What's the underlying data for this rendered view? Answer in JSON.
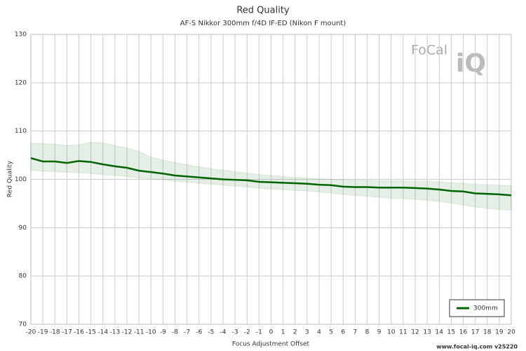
{
  "chart_data": {
    "type": "line",
    "title": "Red Quality",
    "subtitle": "AF-S Nikkor 300mm f/4D IF-ED (Nikon F mount)",
    "x_label": "Focus Adjustment Offset",
    "y_label": "Red Quality",
    "x": [
      -20,
      -19,
      -18,
      -17,
      -16,
      -15,
      -14,
      -13,
      -12,
      -11,
      -10,
      -9,
      -8,
      -7,
      -6,
      -5,
      -4,
      -3,
      -2,
      -1,
      0,
      1,
      2,
      3,
      4,
      5,
      6,
      7,
      8,
      9,
      10,
      11,
      12,
      13,
      14,
      15,
      16,
      17,
      18,
      19,
      20
    ],
    "series": [
      {
        "name": "300mm",
        "color": "#006400",
        "values": [
          104.4,
          103.7,
          103.7,
          103.4,
          103.8,
          103.6,
          103.1,
          102.7,
          102.4,
          101.8,
          101.5,
          101.2,
          100.8,
          100.6,
          100.4,
          100.2,
          100.0,
          99.9,
          99.8,
          99.5,
          99.4,
          99.3,
          99.2,
          99.1,
          98.9,
          98.8,
          98.5,
          98.4,
          98.4,
          98.3,
          98.3,
          98.3,
          98.2,
          98.1,
          97.9,
          97.6,
          97.5,
          97.1,
          97.0,
          96.9,
          96.7
        ],
        "band_upper": [
          107.5,
          107.4,
          107.3,
          107.0,
          107.2,
          107.7,
          107.5,
          107.0,
          106.5,
          105.8,
          104.6,
          104.0,
          103.5,
          103.0,
          102.6,
          102.2,
          101.9,
          101.6,
          101.3,
          101.0,
          100.8,
          100.6,
          100.4,
          100.3,
          100.1,
          100.0,
          99.9,
          99.8,
          99.8,
          99.7,
          99.7,
          99.7,
          99.6,
          99.6,
          99.5,
          99.3,
          99.2,
          99.0,
          98.9,
          98.8,
          98.7
        ],
        "band_lower": [
          101.9,
          101.7,
          101.6,
          101.5,
          101.4,
          101.2,
          101.0,
          100.8,
          100.6,
          100.3,
          100.1,
          99.9,
          99.6,
          99.4,
          99.2,
          99.0,
          98.8,
          98.6,
          98.4,
          98.2,
          98.0,
          97.9,
          97.7,
          97.6,
          97.4,
          97.2,
          96.9,
          96.7,
          96.5,
          96.3,
          96.1,
          96.0,
          95.9,
          95.7,
          95.4,
          95.1,
          94.7,
          94.3,
          94.0,
          93.8,
          93.6
        ]
      }
    ],
    "xlim": [
      -20,
      20
    ],
    "ylim": [
      70,
      130
    ],
    "xticks": [
      -20,
      -19,
      -18,
      -17,
      -16,
      -15,
      -14,
      -13,
      -12,
      -11,
      -10,
      -9,
      -8,
      -7,
      -6,
      -5,
      -4,
      -3,
      -2,
      -1,
      0,
      1,
      2,
      3,
      4,
      5,
      6,
      7,
      8,
      9,
      10,
      11,
      12,
      13,
      14,
      15,
      16,
      17,
      18,
      19,
      20
    ],
    "yticks": [
      70,
      80,
      90,
      100,
      110,
      120,
      130
    ],
    "grid": true,
    "legend": "lower right",
    "watermark": [
      "FoCal",
      "iQ"
    ],
    "footer": "www.focal-iq.com  v25220"
  }
}
